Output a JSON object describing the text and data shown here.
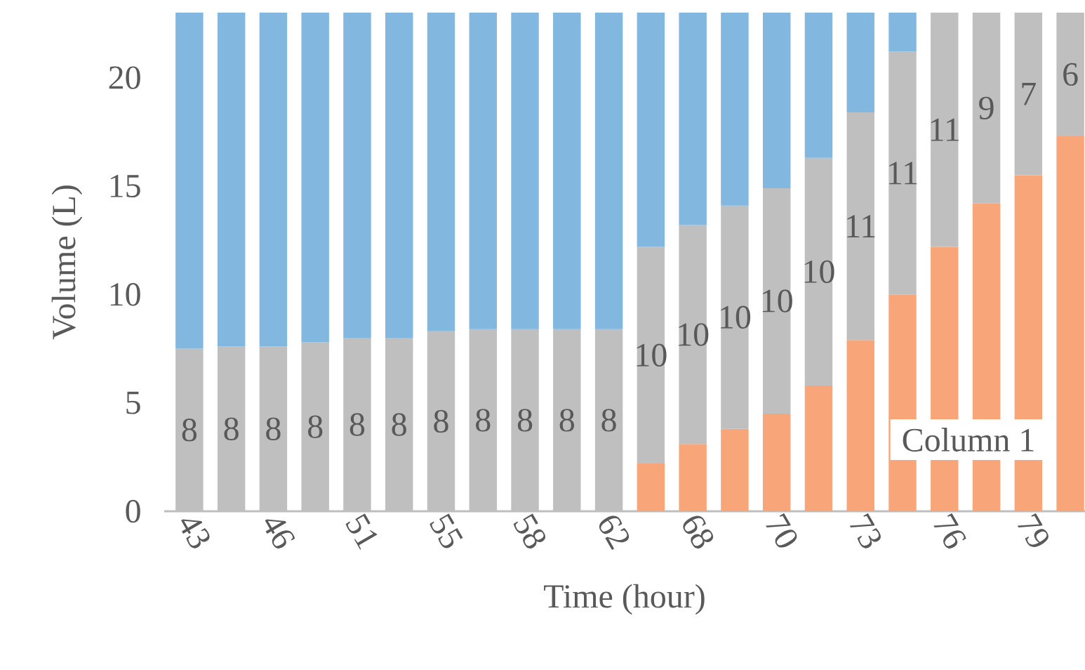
{
  "chart_data": {
    "type": "bar",
    "stacked": true,
    "xlabel": "Time (hour)",
    "ylabel": "Volume (L)",
    "categories": [
      "43",
      null,
      "46",
      null,
      "51",
      null,
      "55",
      null,
      "58",
      null,
      "62",
      null,
      "68",
      null,
      "70",
      null,
      "73",
      null,
      "76",
      null,
      "79",
      null
    ],
    "series": [
      {
        "color": "#f8a679",
        "values": [
          null,
          null,
          null,
          null,
          null,
          null,
          null,
          null,
          null,
          null,
          null,
          2.2,
          3.1,
          3.8,
          4.5,
          5.8,
          7.9,
          10.0,
          12.2,
          14.2,
          15.5,
          17.3
        ]
      },
      {
        "color": "#bfbfbf",
        "values": [
          7.5,
          7.6,
          7.6,
          7.8,
          8.0,
          8.0,
          8.3,
          8.4,
          8.4,
          8.4,
          8.4,
          10.0,
          10.1,
          10.3,
          10.4,
          10.5,
          10.5,
          11.2,
          10.8,
          8.8,
          7.5,
          5.7
        ],
        "value_labels": [
          "8",
          "8",
          "8",
          "8",
          "8",
          "8",
          "8",
          "8",
          "8",
          "8",
          "8",
          "10",
          "10",
          "10",
          "10",
          "10",
          "11",
          "11",
          "11",
          "9",
          "7",
          "6"
        ]
      },
      {
        "color": "#82b7df",
        "values": [
          15.5,
          15.4,
          15.4,
          15.2,
          15.0,
          15.0,
          14.7,
          14.6,
          14.6,
          14.6,
          14.6,
          10.8,
          9.8,
          8.9,
          8.1,
          6.7,
          4.6,
          1.8,
          null,
          null,
          null,
          null
        ]
      }
    ],
    "ylim": [
      0,
      23
    ],
    "yticks": [
      0,
      5,
      10,
      15,
      20
    ],
    "annotations": [
      "Column 1"
    ]
  }
}
